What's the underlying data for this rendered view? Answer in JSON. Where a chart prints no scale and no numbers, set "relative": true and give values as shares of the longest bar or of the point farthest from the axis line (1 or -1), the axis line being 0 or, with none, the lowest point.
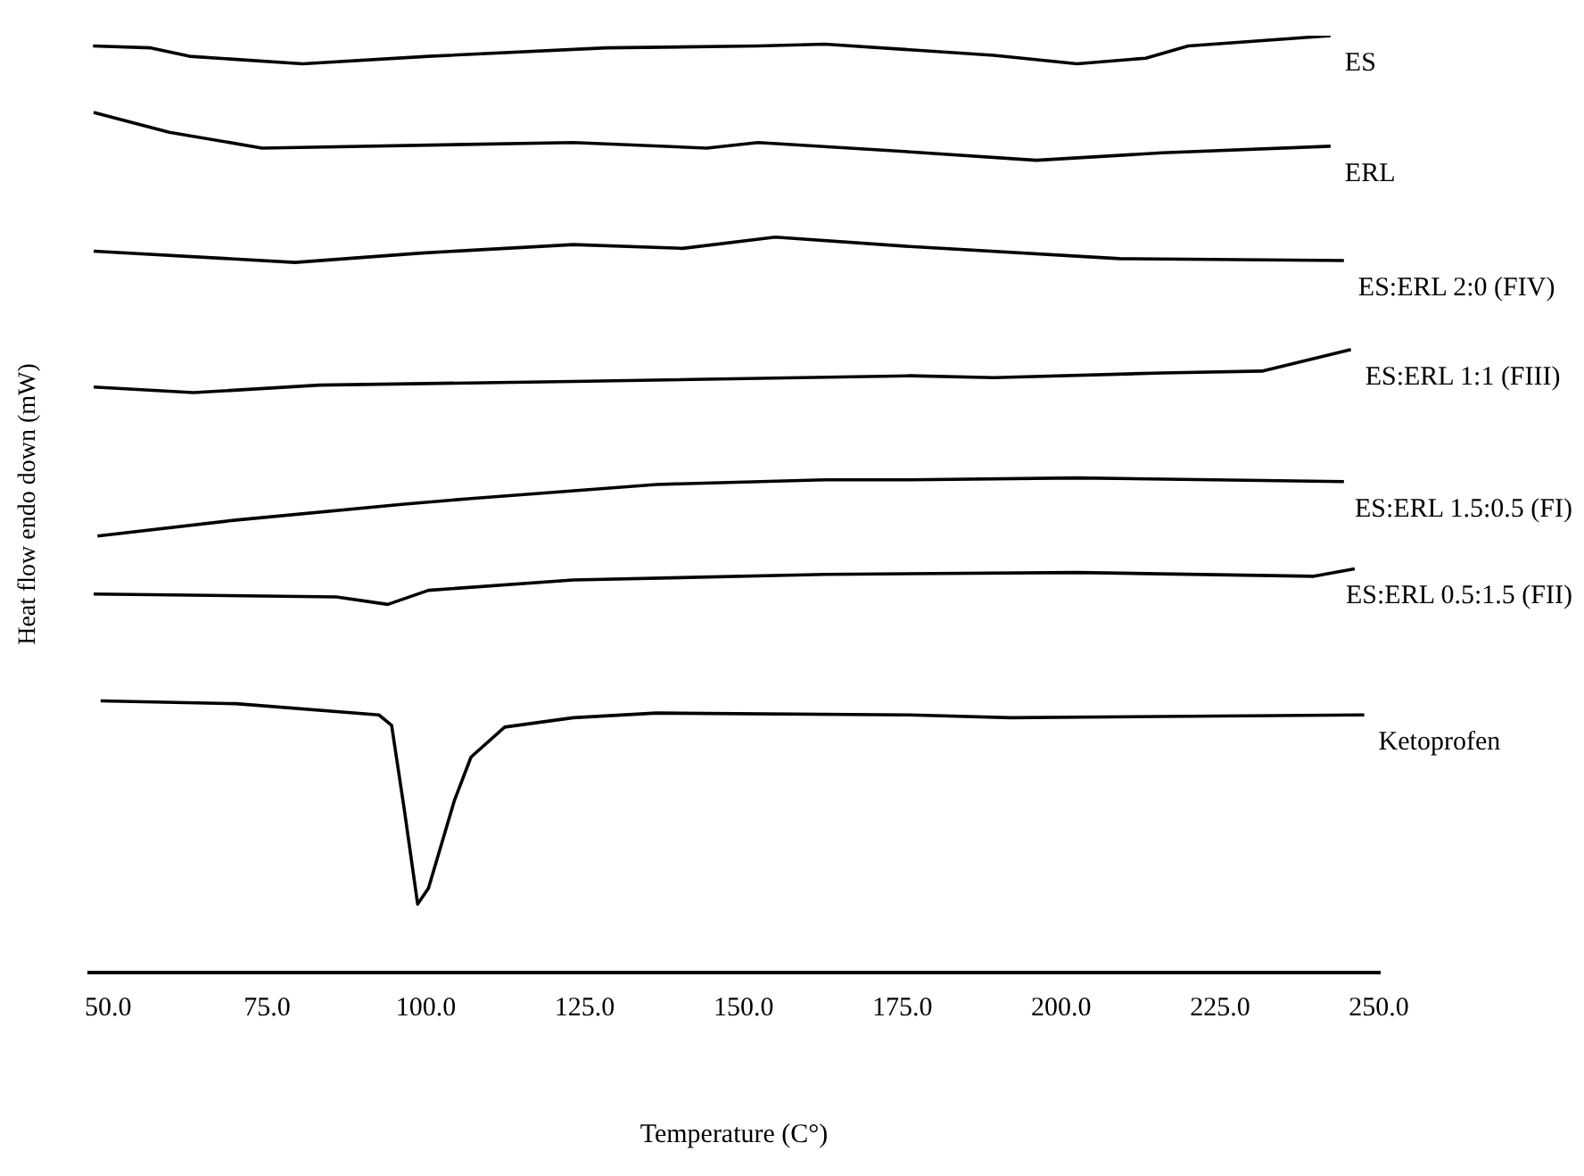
{
  "chart_data": {
    "type": "line",
    "relative": true,
    "xlabel": "Temperature (C°)",
    "ylabel": "Heat flow endo down (mW)",
    "xlim": [
      47,
      250
    ],
    "xticks": [
      {
        "value": 50,
        "label": "50.0"
      },
      {
        "value": 75,
        "label": "75.0"
      },
      {
        "value": 100,
        "label": "100.0"
      },
      {
        "value": 125,
        "label": "125.0"
      },
      {
        "value": 150,
        "label": "150.0"
      },
      {
        "value": 175,
        "label": "175.0"
      },
      {
        "value": 200,
        "label": "200.0"
      },
      {
        "value": 225,
        "label": "225.0"
      },
      {
        "value": 250,
        "label": "250.0"
      }
    ],
    "tick_labels": "x",
    "grid": false,
    "legend": false,
    "marker": "none",
    "line_style": "solid",
    "series": [
      {
        "name": "ES",
        "color": "#000000",
        "x": [
          47.6,
          56.7,
          62.8,
          80.6,
          100.4,
          128.4,
          152.3,
          162.8,
          189.4,
          202.5,
          213.3,
          220.0,
          242.4
        ],
        "values": [
          0.989,
          0.987,
          0.978,
          0.97,
          0.978,
          0.987,
          0.989,
          0.991,
          0.979,
          0.97,
          0.976,
          0.989,
          1.0
        ]
      },
      {
        "name": "ERL",
        "color": "#000000",
        "x": [
          47.7,
          59.6,
          74.2,
          123.2,
          144.2,
          152.3,
          176.2,
          196.1,
          215.9,
          242.4
        ],
        "values": [
          0.918,
          0.897,
          0.88,
          0.886,
          0.88,
          0.886,
          0.876,
          0.867,
          0.875,
          0.882
        ]
      },
      {
        "name": "ES:ERL 2:0 (FIV)",
        "color": "#000000",
        "x": [
          47.7,
          79.4,
          99.3,
          123.2,
          140.4,
          155.0,
          176.2,
          209.2,
          244.5
        ],
        "values": [
          0.77,
          0.758,
          0.768,
          0.777,
          0.773,
          0.785,
          0.775,
          0.762,
          0.76
        ]
      },
      {
        "name": "ES:ERL 1:1 (FIII)",
        "color": "#000000",
        "x": [
          47.7,
          63.4,
          83.2,
          123.2,
          176.2,
          189.4,
          215.9,
          231.6,
          245.6
        ],
        "values": [
          0.625,
          0.619,
          0.627,
          0.631,
          0.637,
          0.635,
          0.64,
          0.642,
          0.665
        ]
      },
      {
        "name": "ES:ERL 1.5:0.5 (FI)",
        "color": "#000000",
        "x": [
          48.3,
          70.1,
          96.6,
          107.1,
          136.3,
          162.8,
          176.2,
          202.5,
          244.5
        ],
        "values": [
          0.466,
          0.483,
          0.5,
          0.506,
          0.521,
          0.526,
          0.526,
          0.528,
          0.524
        ]
      },
      {
        "name": "ES:ERL 0.5:1.5 (FII)",
        "color": "#000000",
        "x": [
          47.7,
          85.9,
          94.0,
          100.4,
          123.2,
          162.8,
          202.5,
          239.8,
          246.2
        ],
        "values": [
          0.404,
          0.401,
          0.393,
          0.408,
          0.419,
          0.425,
          0.427,
          0.423,
          0.431
        ]
      },
      {
        "name": "Ketoprofen",
        "color": "#000000",
        "x": [
          48.8,
          70.1,
          92.6,
          94.6,
          96.6,
          98.7,
          100.4,
          104.5,
          107.1,
          112.4,
          123.2,
          136.3,
          176.2,
          192.0,
          247.7
        ],
        "values": [
          0.29,
          0.287,
          0.275,
          0.264,
          0.174,
          0.073,
          0.09,
          0.184,
          0.23,
          0.262,
          0.272,
          0.277,
          0.275,
          0.272,
          0.275
        ]
      }
    ]
  }
}
